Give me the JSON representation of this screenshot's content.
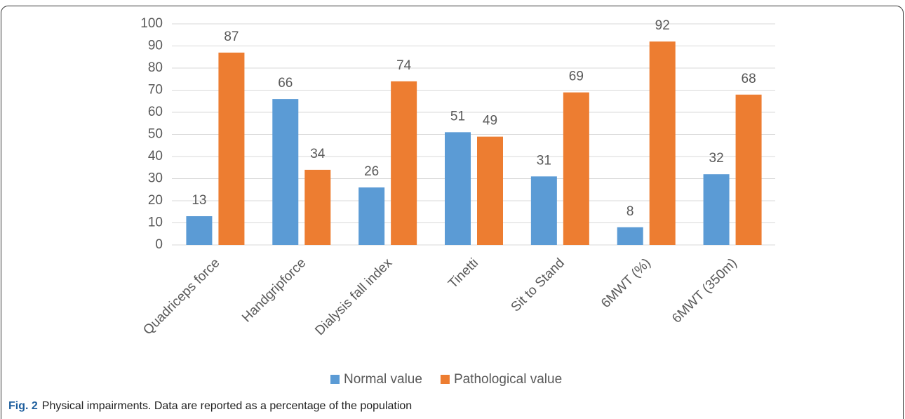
{
  "chart_data": {
    "type": "bar",
    "categories": [
      "Quadriceps force",
      "Handgripforce",
      "Dialysis fall index",
      "Tinetti",
      "Sit to Stand",
      "6MWT (%)",
      "6MWT (350m)"
    ],
    "series": [
      {
        "name": "Normal value",
        "color": "#5b9bd5",
        "values": [
          13,
          66,
          26,
          51,
          31,
          8,
          32
        ]
      },
      {
        "name": "Pathological value",
        "color": "#ed7d31",
        "values": [
          87,
          34,
          74,
          49,
          69,
          92,
          68
        ]
      }
    ],
    "ylim": [
      0,
      100
    ],
    "yticks": [
      0,
      10,
      20,
      30,
      40,
      50,
      60,
      70,
      80,
      90,
      100
    ],
    "grid": true,
    "legend": "bottom",
    "caption_label": "Fig. 2",
    "caption": "Physical impairments. Data are reported as a percentage of the population"
  }
}
